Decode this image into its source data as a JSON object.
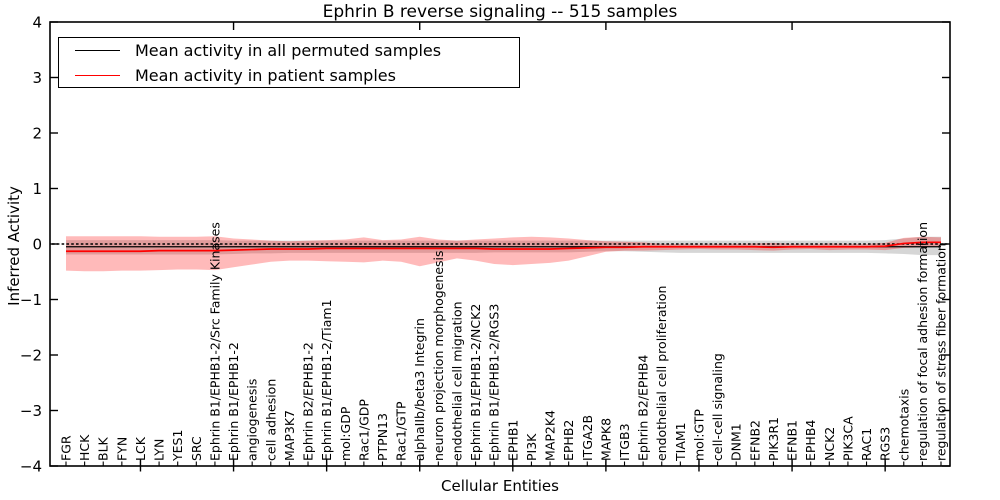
{
  "chart_data": {
    "type": "line",
    "title": "Ephrin B reverse signaling -- 515 samples",
    "xlabel": "Cellular Entities",
    "ylabel": "Inferred Activity",
    "ylim": [
      -4,
      4
    ],
    "yticks": [
      4,
      3,
      2,
      1,
      0,
      -1,
      -2,
      -3,
      -4
    ],
    "ytick_labels": [
      "4",
      "3",
      "2",
      "1",
      "0",
      "−1",
      "−2",
      "−3",
      "−4"
    ],
    "x_major_tick_values_top": [
      10,
      20,
      30,
      40
    ],
    "x_major_tick_values_bottom": [
      5,
      10,
      15,
      20,
      25,
      30,
      35,
      40,
      45
    ],
    "grid": false,
    "legend_position": "upper left",
    "zero_reference_line": {
      "style": "dotted",
      "y": 0,
      "color": "#000000"
    },
    "categories": [
      "FGR",
      "HCK",
      "BLK",
      "FYN",
      "LCK",
      "LYN",
      "YES1",
      "SRC",
      "Ephrin B1/EPHB1-2/Src Family Kinases",
      "Ephrin B1/EPHB1-2",
      "angiogenesis",
      "cell adhesion",
      "MAP3K7",
      "Ephrin B2/EPHB1-2",
      "Ephrin B1/EPHB1-2/Tiam1",
      "mol:GDP",
      "Rac1/GDP",
      "PTPN13",
      "Rac1/GTP",
      "alphaIIb/beta3 Integrin",
      "neuron projection morphogenesis",
      "endothelial cell migration",
      "Ephrin B1/EPHB1-2/NCK2",
      "Ephrin B1/EPHB1-2/RGS3",
      "EPHB1",
      "PI3K",
      "MAP2K4",
      "EPHB2",
      "ITGA2B",
      "MAPK8",
      "ITGB3",
      "Ephrin B2/EPHB4",
      "endothelial cell proliferation",
      "TIAM1",
      "mol:GTP",
      "cell-cell signaling",
      "DNM1",
      "EFNB2",
      "PIK3R1",
      "EFNB1",
      "EPHB4",
      "NCK2",
      "PIK3CA",
      "RAC1",
      "RGS3",
      "chemotaxis",
      "regulation of focal adhesion formation",
      "regulation of stress fiber formation"
    ],
    "series": [
      {
        "name": "Mean activity in all permuted samples",
        "color": "#000000",
        "values": [
          -0.05,
          -0.05,
          -0.05,
          -0.05,
          -0.05,
          -0.05,
          -0.05,
          -0.05,
          -0.05,
          -0.05,
          -0.05,
          -0.05,
          -0.05,
          -0.05,
          -0.05,
          -0.05,
          -0.05,
          -0.05,
          -0.05,
          -0.05,
          -0.05,
          -0.05,
          -0.05,
          -0.05,
          -0.05,
          -0.05,
          -0.05,
          -0.05,
          -0.05,
          -0.05,
          -0.05,
          -0.05,
          -0.05,
          -0.05,
          -0.05,
          -0.05,
          -0.05,
          -0.05,
          -0.05,
          -0.05,
          -0.05,
          -0.05,
          -0.05,
          -0.05,
          -0.05,
          -0.05,
          -0.05,
          -0.05
        ]
      },
      {
        "name": "Mean activity in patient samples",
        "color": "#ff0000",
        "values": [
          -0.13,
          -0.13,
          -0.13,
          -0.13,
          -0.13,
          -0.12,
          -0.12,
          -0.12,
          -0.12,
          -0.11,
          -0.1,
          -0.09,
          -0.09,
          -0.09,
          -0.08,
          -0.08,
          -0.08,
          -0.08,
          -0.08,
          -0.08,
          -0.08,
          -0.08,
          -0.08,
          -0.09,
          -0.09,
          -0.09,
          -0.09,
          -0.08,
          -0.07,
          -0.06,
          -0.06,
          -0.05,
          -0.05,
          -0.05,
          -0.05,
          -0.05,
          -0.05,
          -0.05,
          -0.06,
          -0.05,
          -0.05,
          -0.05,
          -0.05,
          -0.05,
          -0.04,
          0.01,
          0.03,
          0.03
        ]
      }
    ],
    "bands": [
      {
        "name": "permuted-samples-spread",
        "color": "rgba(120,120,120,0.30)",
        "upper": [
          0.07,
          0.07,
          0.07,
          0.07,
          0.07,
          0.07,
          0.07,
          0.07,
          0.07,
          0.06,
          0.06,
          0.06,
          0.06,
          0.06,
          0.06,
          0.06,
          0.06,
          0.06,
          0.06,
          0.06,
          0.06,
          0.06,
          0.06,
          0.06,
          0.06,
          0.06,
          0.06,
          0.06,
          0.06,
          0.06,
          0.06,
          0.06,
          0.06,
          0.06,
          0.06,
          0.06,
          0.06,
          0.06,
          0.06,
          0.06,
          0.06,
          0.06,
          0.06,
          0.06,
          0.07,
          0.1,
          0.13,
          0.13
        ],
        "lower": [
          -0.19,
          -0.19,
          -0.19,
          -0.19,
          -0.19,
          -0.19,
          -0.19,
          -0.19,
          -0.19,
          -0.18,
          -0.17,
          -0.17,
          -0.16,
          -0.16,
          -0.16,
          -0.16,
          -0.16,
          -0.16,
          -0.16,
          -0.16,
          -0.16,
          -0.16,
          -0.16,
          -0.15,
          -0.15,
          -0.15,
          -0.15,
          -0.15,
          -0.14,
          -0.13,
          -0.13,
          -0.14,
          -0.15,
          -0.16,
          -0.16,
          -0.16,
          -0.16,
          -0.16,
          -0.16,
          -0.16,
          -0.16,
          -0.16,
          -0.16,
          -0.16,
          -0.17,
          -0.18,
          -0.2,
          -0.2
        ]
      },
      {
        "name": "patient-samples-spread",
        "color": "rgba(255,0,0,0.27)",
        "upper": [
          0.14,
          0.14,
          0.14,
          0.14,
          0.14,
          0.13,
          0.13,
          0.13,
          0.14,
          0.1,
          0.08,
          0.06,
          0.05,
          0.06,
          0.07,
          0.08,
          0.12,
          0.07,
          0.08,
          0.13,
          0.08,
          0.06,
          0.08,
          0.1,
          0.12,
          0.13,
          0.12,
          0.1,
          0.07,
          0.05,
          0.04,
          0.03,
          0.0,
          0.0,
          -0.01,
          0.0,
          0.0,
          0.01,
          0.02,
          0.0,
          -0.01,
          0.01,
          0.0,
          0.0,
          0.02,
          0.11,
          0.13,
          0.12
        ],
        "lower": [
          -0.48,
          -0.49,
          -0.49,
          -0.48,
          -0.48,
          -0.47,
          -0.46,
          -0.46,
          -0.47,
          -0.42,
          -0.37,
          -0.32,
          -0.3,
          -0.3,
          -0.31,
          -0.32,
          -0.33,
          -0.3,
          -0.32,
          -0.4,
          -0.33,
          -0.26,
          -0.3,
          -0.36,
          -0.38,
          -0.36,
          -0.34,
          -0.3,
          -0.22,
          -0.14,
          -0.12,
          -0.12,
          -0.11,
          -0.1,
          -0.09,
          -0.1,
          -0.1,
          -0.11,
          -0.12,
          -0.1,
          -0.09,
          -0.11,
          -0.1,
          -0.1,
          -0.11,
          -0.07,
          -0.06,
          -0.05
        ]
      }
    ]
  },
  "colors": {
    "frame": "#000000",
    "background": "#ffffff",
    "permuted_line": "#000000",
    "patient_line": "#ff0000"
  }
}
